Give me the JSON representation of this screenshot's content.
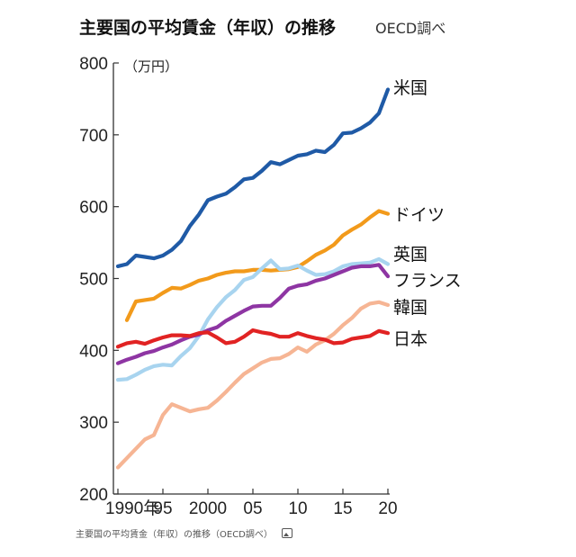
{
  "header": {
    "title": "主要国の平均賃金（年収）の推移",
    "source": "OECD調べ"
  },
  "caption": {
    "text": "主要国の平均賃金（年収）の推移（OECD調べ）",
    "icon": "image-icon"
  },
  "chart_data": {
    "type": "line",
    "title": "主要国の平均賃金（年収）の推移",
    "ylabel": "（万円）",
    "xlabel": "",
    "x": [
      1990,
      1991,
      1992,
      1993,
      1994,
      1995,
      1996,
      1997,
      1998,
      1999,
      2000,
      2001,
      2002,
      2003,
      2004,
      2005,
      2006,
      2007,
      2008,
      2009,
      2010,
      2011,
      2012,
      2013,
      2014,
      2015,
      2016,
      2017,
      2018,
      2019,
      2020
    ],
    "xlim": [
      1990,
      2020
    ],
    "ylim": [
      200,
      800
    ],
    "xticks": [
      {
        "value": 1990,
        "label": "1990年"
      },
      {
        "value": 1995,
        "label": "95"
      },
      {
        "value": 2000,
        "label": "2000"
      },
      {
        "value": 2005,
        "label": "05"
      },
      {
        "value": 2010,
        "label": "10"
      },
      {
        "value": 2015,
        "label": "15"
      },
      {
        "value": 2020,
        "label": "20"
      }
    ],
    "yticks": [
      200,
      300,
      400,
      500,
      600,
      700,
      800
    ],
    "grid": false,
    "series": [
      {
        "name": "米国",
        "color": "#1f5aa6",
        "values": [
          517,
          520,
          532,
          530,
          528,
          532,
          540,
          552,
          573,
          589,
          609,
          614,
          618,
          627,
          638,
          640,
          650,
          662,
          659,
          665,
          671,
          673,
          678,
          676,
          686,
          702,
          703,
          709,
          717,
          730,
          763
        ]
      },
      {
        "name": "ドイツ",
        "color": "#f29a1b",
        "values": [
          null,
          442,
          468,
          470,
          472,
          480,
          487,
          486,
          491,
          497,
          500,
          505,
          508,
          510,
          510,
          512,
          512,
          511,
          512,
          513,
          516,
          524,
          533,
          539,
          547,
          560,
          568,
          575,
          585,
          594,
          590
        ]
      },
      {
        "name": "英国",
        "color": "#a8d4ef",
        "values": [
          359,
          360,
          366,
          373,
          378,
          380,
          379,
          392,
          403,
          420,
          443,
          460,
          474,
          484,
          498,
          502,
          514,
          525,
          513,
          514,
          518,
          511,
          505,
          506,
          510,
          517,
          520,
          521,
          522,
          527,
          520
        ]
      },
      {
        "name": "フランス",
        "color": "#8e35a3",
        "values": [
          382,
          387,
          391,
          396,
          399,
          404,
          408,
          414,
          419,
          422,
          428,
          432,
          441,
          448,
          455,
          461,
          462,
          462,
          473,
          486,
          490,
          492,
          497,
          500,
          505,
          510,
          515,
          517,
          517,
          519,
          503
        ]
      },
      {
        "name": "韓国",
        "color": "#f6b594",
        "values": [
          237,
          250,
          263,
          276,
          282,
          310,
          325,
          320,
          315,
          318,
          320,
          330,
          342,
          355,
          367,
          375,
          383,
          388,
          389,
          395,
          404,
          398,
          408,
          414,
          423,
          435,
          445,
          458,
          465,
          467,
          463
        ]
      },
      {
        "name": "日本",
        "color": "#e12323",
        "values": [
          405,
          410,
          412,
          409,
          414,
          418,
          421,
          421,
          420,
          424,
          425,
          418,
          410,
          412,
          419,
          428,
          425,
          423,
          419,
          419,
          424,
          420,
          417,
          415,
          410,
          411,
          416,
          418,
          420,
          427,
          424
        ]
      }
    ]
  }
}
